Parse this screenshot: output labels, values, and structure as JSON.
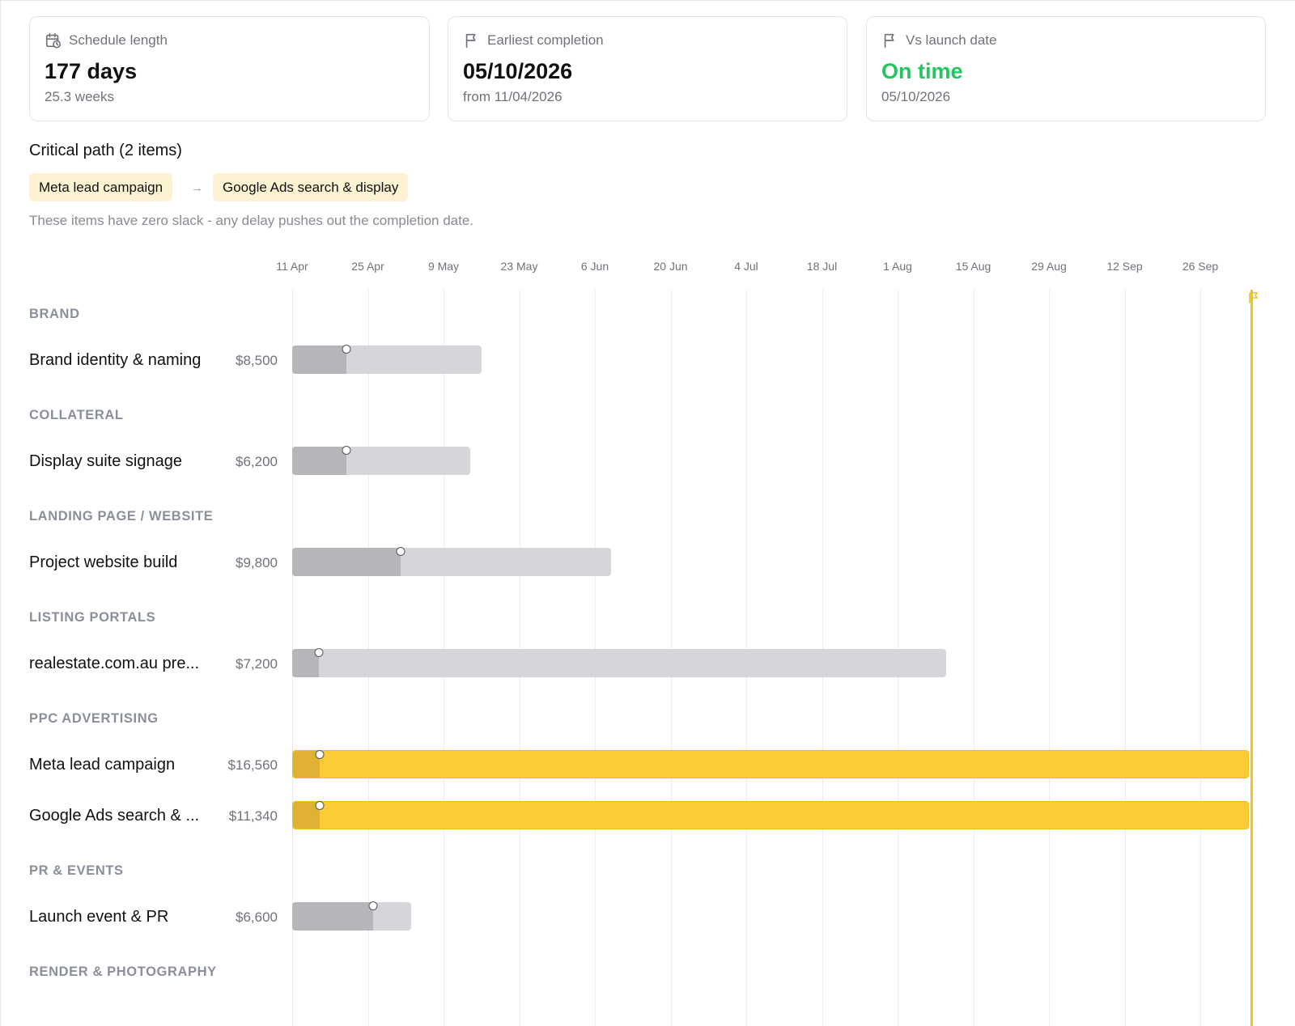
{
  "stats": [
    {
      "icon": "calendar-clock-icon",
      "label": "Schedule length",
      "value": "177 days",
      "sub": "25.3 weeks"
    },
    {
      "icon": "flag-icon",
      "label": "Earliest completion",
      "value": "05/10/2026",
      "sub": "from 11/04/2026"
    },
    {
      "icon": "flag-icon",
      "label": "Vs launch date",
      "value": "On time",
      "sub": "05/10/2026",
      "value_color": "#22c55e"
    }
  ],
  "critical_path": {
    "title": "Critical path (2 items)",
    "items": [
      "Meta lead campaign",
      "Google Ads search & display"
    ],
    "arrow": "→",
    "note": "These items have zero slack - any delay pushes out the completion date."
  },
  "timeline": {
    "ticks": [
      "11 Apr",
      "25 Apr",
      "9 May",
      "23 May",
      "6 Jun",
      "20 Jun",
      "4 Jul",
      "18 Jul",
      "1 Aug",
      "15 Aug",
      "29 Aug",
      "12 Sep",
      "26 Sep"
    ],
    "tick_spacing_days": 14,
    "launch_marker_color": "#f5c320"
  },
  "groups": [
    {
      "label": "BRAND",
      "rows": [
        {
          "name": "Brand identity & naming",
          "cost": "$8,500",
          "start_day": 0,
          "duration_days": 35,
          "progress_days": 10,
          "critical": false
        }
      ]
    },
    {
      "label": "COLLATERAL",
      "rows": [
        {
          "name": "Display suite signage",
          "cost": "$6,200",
          "start_day": 0,
          "duration_days": 33,
          "progress_days": 10,
          "critical": false
        }
      ]
    },
    {
      "label": "LANDING PAGE / WEBSITE",
      "rows": [
        {
          "name": "Project website build",
          "cost": "$9,800",
          "start_day": 0,
          "duration_days": 59,
          "progress_days": 20,
          "critical": false
        }
      ]
    },
    {
      "label": "LISTING PORTALS",
      "rows": [
        {
          "name": "realestate.com.au pre...",
          "cost": "$7,200",
          "start_day": 0,
          "duration_days": 121,
          "progress_days": 5,
          "critical": false
        }
      ]
    },
    {
      "label": "PPC ADVERTISING",
      "rows": [
        {
          "name": "Meta lead campaign",
          "cost": "$16,560",
          "start_day": 0,
          "duration_days": 177,
          "progress_days": 5,
          "critical": true
        },
        {
          "name": "Google Ads search & ...",
          "cost": "$11,340",
          "start_day": 0,
          "duration_days": 177,
          "progress_days": 5,
          "critical": true
        }
      ]
    },
    {
      "label": "PR & EVENTS",
      "rows": [
        {
          "name": "Launch event & PR",
          "cost": "$6,600",
          "start_day": 0,
          "duration_days": 22,
          "progress_days": 15,
          "critical": false
        }
      ]
    },
    {
      "label": "RENDER & PHOTOGRAPHY",
      "rows": []
    }
  ]
}
